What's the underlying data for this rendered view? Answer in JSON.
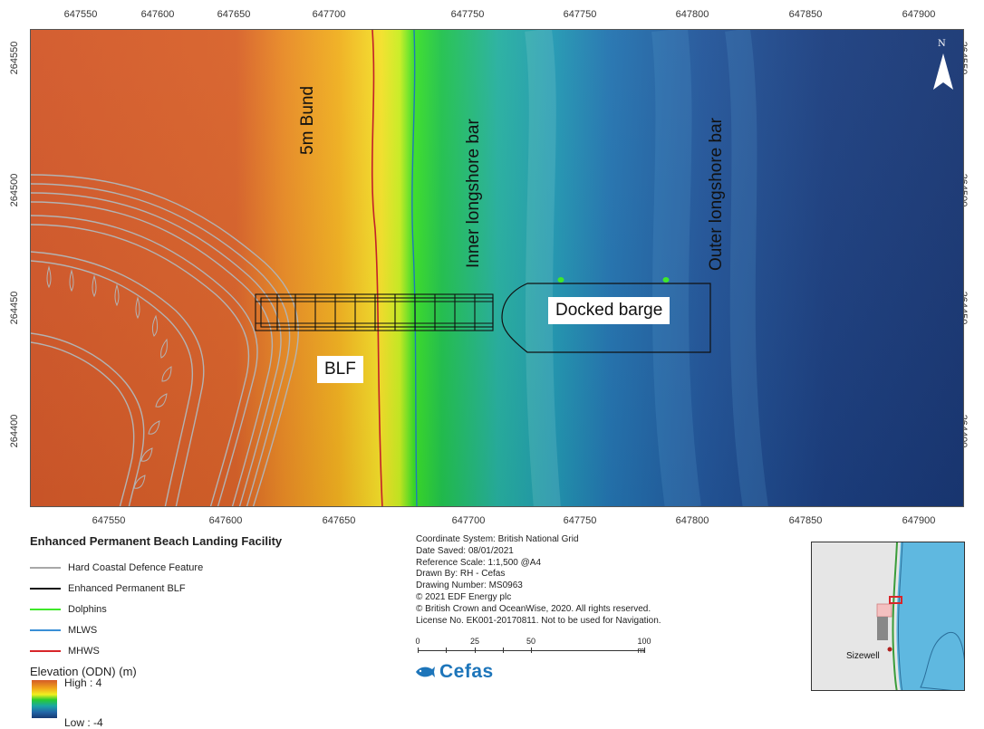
{
  "axes": {
    "x_ticks": [
      "647550",
      "647600",
      "647650",
      "647700",
      "647750",
      "647800",
      "647850",
      "647900"
    ],
    "y_ticks": [
      "264550",
      "264500",
      "264450",
      "264400"
    ]
  },
  "map_labels": {
    "bund": "5m Bund",
    "inner_bar": "Inner longshore bar",
    "outer_bar": "Outer longshore bar",
    "barge": "Docked barge",
    "blf": "BLF",
    "north": "N"
  },
  "legend": {
    "title": "Enhanced Permanent Beach Landing Facility",
    "items": [
      {
        "label": "Hard Coastal Defence Feature",
        "color": "#a8a8a8"
      },
      {
        "label": "Enhanced Permanent BLF",
        "color": "#111111"
      },
      {
        "label": "Dolphins",
        "color": "#3fe82a"
      },
      {
        "label": "MLWS",
        "color": "#3a8fd6"
      },
      {
        "label": "MHWS",
        "color": "#d8262a"
      }
    ],
    "elevation_title": "Elevation (ODN) (m)",
    "elevation_high": "High : 4",
    "elevation_low": "Low : -4"
  },
  "metadata": {
    "lines": [
      "Coordinate System: British National Grid",
      "Date Saved: 08/01/2021",
      "Reference Scale: 1:1,500 @A4",
      "Drawn By: RH - Cefas",
      "Drawing Number: MS0963",
      "© 2021 EDF Energy plc",
      "© British Crown and OceanWise, 2020. All rights reserved.",
      "License No. EK001-20170811. Not to be used for Navigation."
    ]
  },
  "scale_bar": {
    "labels": [
      "0",
      "25",
      "50",
      "100 m"
    ]
  },
  "logo": {
    "text": "Cefas"
  },
  "inset": {
    "place": "Sizewell"
  },
  "colors": {
    "land_high": "#d45a27",
    "sand": "#f2a81a",
    "dolphin": "#3fe82a",
    "deep_water": "#173a73",
    "mhws": "#d8262a",
    "mlws": "#3a8fd6"
  }
}
